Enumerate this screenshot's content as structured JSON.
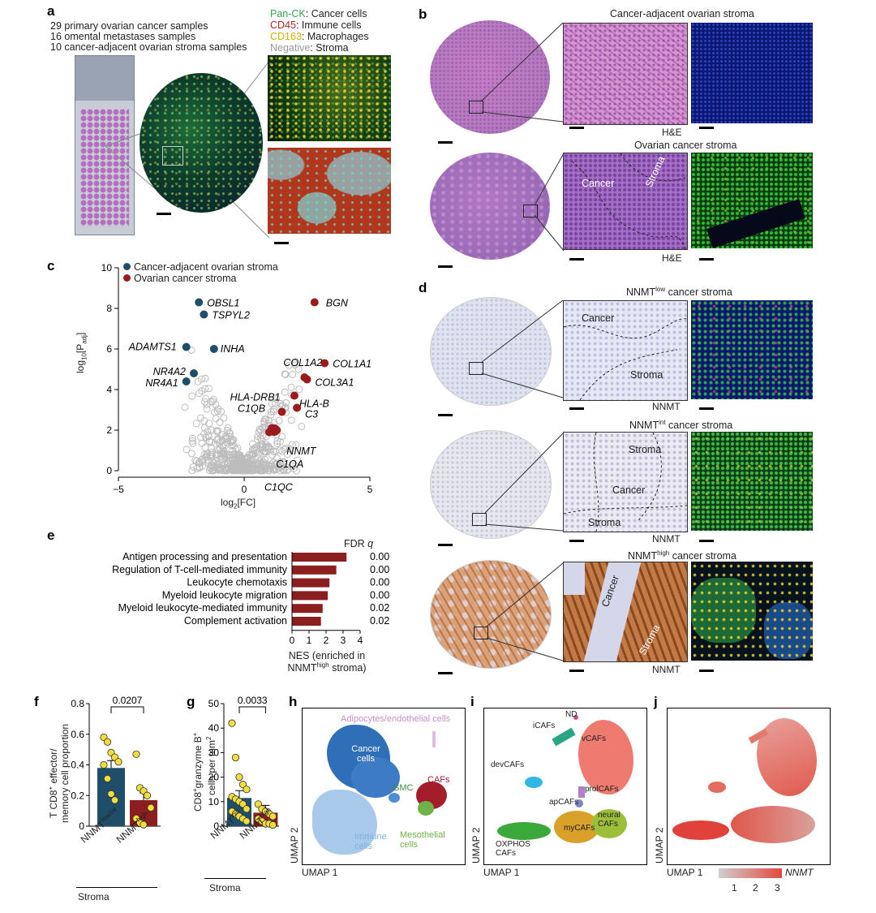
{
  "panels": {
    "a": "a",
    "b": "b",
    "c": "c",
    "d": "d",
    "e": "e",
    "f": "f",
    "g": "g",
    "h": "h",
    "i": "i",
    "j": "j"
  },
  "panel_a": {
    "samples": [
      "29 primary ovarian cancer samples",
      "16 omental metastases samples",
      "10 cancer-adjacent ovarian stroma samples"
    ],
    "legend": [
      {
        "marker": "Pan-CK",
        "label": ": Cancer cells",
        "color": "#3aa64a"
      },
      {
        "marker": "CD45",
        "label": ": Immune cells",
        "color": "#b3261e"
      },
      {
        "marker": "CD163",
        "label": ": Macrophages",
        "color": "#d4b000"
      },
      {
        "marker": "Negative",
        "label": ": Stroma",
        "color": "#9a9a9a"
      }
    ]
  },
  "panel_b": {
    "top_title": "Cancer-adjacent ovarian stroma",
    "bottom_title": "Ovarian cancer stroma",
    "stain_top": "H&E",
    "stain_bottom": "H&E",
    "region_cancer": "Cancer",
    "region_stroma": "Stroma"
  },
  "panel_c": {
    "legend": [
      {
        "label": "Cancer-adjacent ovarian stroma",
        "color": "#1f4e6b"
      },
      {
        "label": "Ovarian cancer stroma",
        "color": "#9b1c1c"
      }
    ],
    "xlabel_main": "log",
    "xlabel_sub": "2",
    "xlabel_tail": "[FC]",
    "ylabel_main": "log",
    "ylabel_sub": "10",
    "ylabel_tail": "[P",
    "ylabel_sub2": "adj",
    "ylabel_end": "]"
  },
  "chart_data": [
    {
      "type": "scatter",
      "id": "volcano",
      "xlim": [
        -5,
        5
      ],
      "ylim": [
        0,
        10
      ],
      "xticks": [
        "-5",
        "0",
        "5"
      ],
      "yticks": [
        "0",
        "2",
        "4",
        "6",
        "8",
        "10"
      ],
      "labelled_points": [
        {
          "label": "OBSL1",
          "x": -1.8,
          "y": 8.3,
          "group": "adjacent"
        },
        {
          "label": "TSPYL2",
          "x": -1.6,
          "y": 7.7,
          "group": "adjacent"
        },
        {
          "label": "ADAMTS1",
          "x": -2.3,
          "y": 6.1,
          "group": "adjacent"
        },
        {
          "label": "INHA",
          "x": -1.2,
          "y": 6.0,
          "group": "adjacent"
        },
        {
          "label": "NR4A2",
          "x": -2.0,
          "y": 4.8,
          "group": "adjacent"
        },
        {
          "label": "NR4A1",
          "x": -2.3,
          "y": 4.4,
          "group": "adjacent"
        },
        {
          "label": "BGN",
          "x": 2.8,
          "y": 8.3,
          "group": "cancer"
        },
        {
          "label": "COL1A1",
          "x": 3.2,
          "y": 5.3,
          "group": "cancer"
        },
        {
          "label": "COL1A2",
          "x": 2.4,
          "y": 4.6,
          "group": "cancer"
        },
        {
          "label": "COL3A1",
          "x": 2.5,
          "y": 4.5,
          "group": "cancer"
        },
        {
          "label": "HLA-B",
          "x": 2.0,
          "y": 3.7,
          "group": "cancer"
        },
        {
          "label": "HLA-DRB1",
          "x": 1.5,
          "y": 2.9,
          "group": "cancer"
        },
        {
          "label": "C3",
          "x": 2.1,
          "y": 3.1,
          "group": "cancer"
        },
        {
          "label": "C1QB",
          "x": 1.1,
          "y": 2.1,
          "group": "cancer"
        },
        {
          "label": "NNMT",
          "x": 1.3,
          "y": 2.0,
          "group": "cancer"
        },
        {
          "label": "C1QA",
          "x": 1.2,
          "y": 2.0,
          "group": "cancer"
        },
        {
          "label": "C1QC",
          "x": 1.0,
          "y": 1.9,
          "group": "cancer"
        }
      ]
    },
    {
      "type": "bar",
      "id": "pathways",
      "orientation": "horizontal",
      "categories": [
        "Antigen processing and presentation",
        "Regulation of T-cell-mediated immunity",
        "Leukocyte chemotaxis",
        "Myeloid leukocyte migration",
        "Myeloid leukocyte-mediated immunity",
        "Complement activation"
      ],
      "values": [
        3.2,
        2.6,
        2.2,
        2.1,
        1.8,
        1.7
      ],
      "fdr": [
        "0.000",
        "0.000",
        "0.001",
        "0.001",
        "0.023",
        "0.028"
      ],
      "xlim": [
        0,
        4
      ],
      "xticks": [
        "0",
        "1",
        "2",
        "3",
        "4"
      ],
      "color": "#8b1e1e"
    },
    {
      "type": "bar",
      "id": "tcd8",
      "categories": [
        "NNMTlow/int",
        "NNMThigh"
      ],
      "values": [
        0.38,
        0.17
      ],
      "ylim": [
        0,
        0.8
      ],
      "yticks": [
        "0",
        "0.2",
        "0.4",
        "0.6",
        "0.8"
      ],
      "pvalue": "0.0207",
      "colors": [
        "#1f4e6b",
        "#8b1e1e"
      ],
      "points": [
        [
          0.58,
          0.55,
          0.48,
          0.45,
          0.42,
          0.4,
          0.31,
          0.21,
          0.17
        ],
        [
          0.47,
          0.25,
          0.23,
          0.2,
          0.12,
          0.05,
          0.02,
          0.01
        ]
      ]
    },
    {
      "type": "bar",
      "id": "granzyme",
      "categories": [
        "NNMTlow",
        "NNMThigh"
      ],
      "values": [
        11.5,
        5.5
      ],
      "ylim": [
        0,
        50
      ],
      "yticks": [
        "0",
        "10",
        "20",
        "30",
        "40",
        "50"
      ],
      "pvalue": "0.0033",
      "colors": [
        "#1f4e6b",
        "#8b1e1e"
      ],
      "points": [
        [
          42,
          28,
          20,
          17,
          15,
          12,
          11,
          10,
          9,
          7,
          6,
          5,
          4,
          3,
          2
        ],
        [
          9,
          7,
          6,
          5,
          4,
          3,
          2,
          1,
          1,
          0.5
        ]
      ]
    }
  ],
  "panel_d": {
    "titles": [
      {
        "pre": "NNMT",
        "sup": "low",
        "post": " cancer stroma"
      },
      {
        "pre": "NNMT",
        "sup": "int",
        "post": " cancer stroma"
      },
      {
        "pre": "NNMT",
        "sup": "high",
        "post": " cancer stroma"
      }
    ],
    "stain": "NNMT",
    "cancer": "Cancer",
    "stroma": "Stroma"
  },
  "panel_e": {
    "fdr_header_pre": "FDR ",
    "fdr_header_q": "q",
    "xlabel_l1": "NES (enriched in",
    "xlabel_l2_pre": "NNMT",
    "xlabel_l2_sup": "high",
    "xlabel_l2_post": " stroma)"
  },
  "panel_f": {
    "ylabel_l1_pre": "T CD8",
    "ylabel_l1_sup": "+",
    "ylabel_l1_post": " effector/",
    "ylabel_l2": "memory cell proportion",
    "cat1_pre": "NNMT",
    "cat1_sup": "low/int",
    "cat2_pre": "NNMT",
    "cat2_sup": "high",
    "group": "Stroma"
  },
  "panel_g": {
    "ylabel_l1_pre": "CD8",
    "ylabel_l1_sup": "+",
    "ylabel_l1_mid": "granzyme B",
    "ylabel_l1_sup2": "+",
    "ylabel_l2_pre": "cells per mm",
    "ylabel_l2_sup": "2",
    "cat1_pre": "NNMT",
    "cat1_sup": "low",
    "cat2_pre": "NNMT",
    "cat2_sup": "high",
    "group": "Stroma"
  },
  "panel_h": {
    "labels": {
      "adipo": "Adipocytes/endothelial cells",
      "cancer": "Cancer cells",
      "smc": "SMC",
      "cafs": "CAFs",
      "immune": "Immune cells",
      "meso": "Mesothelial cells"
    },
    "umap1": "UMAP 1",
    "umap2": "UMAP 2"
  },
  "panel_i": {
    "labels": {
      "nd": "ND",
      "icafs": "iCAFs",
      "vcafs": "vCAFs",
      "devcafs": "devCAFs",
      "prolcafs": "prolCAFs",
      "apcafs": "apCAFs",
      "oxphos": "OXPHOS CAFs",
      "mycafs": "myCAFs",
      "neural": "neural CAFs"
    },
    "umap1": "UMAP 1",
    "umap2": "UMAP 2"
  },
  "panel_j": {
    "umap1": "UMAP 1",
    "umap2": "UMAP 2",
    "gene": "NNMT",
    "colorbar_ticks": [
      "1",
      "2",
      "3"
    ]
  }
}
